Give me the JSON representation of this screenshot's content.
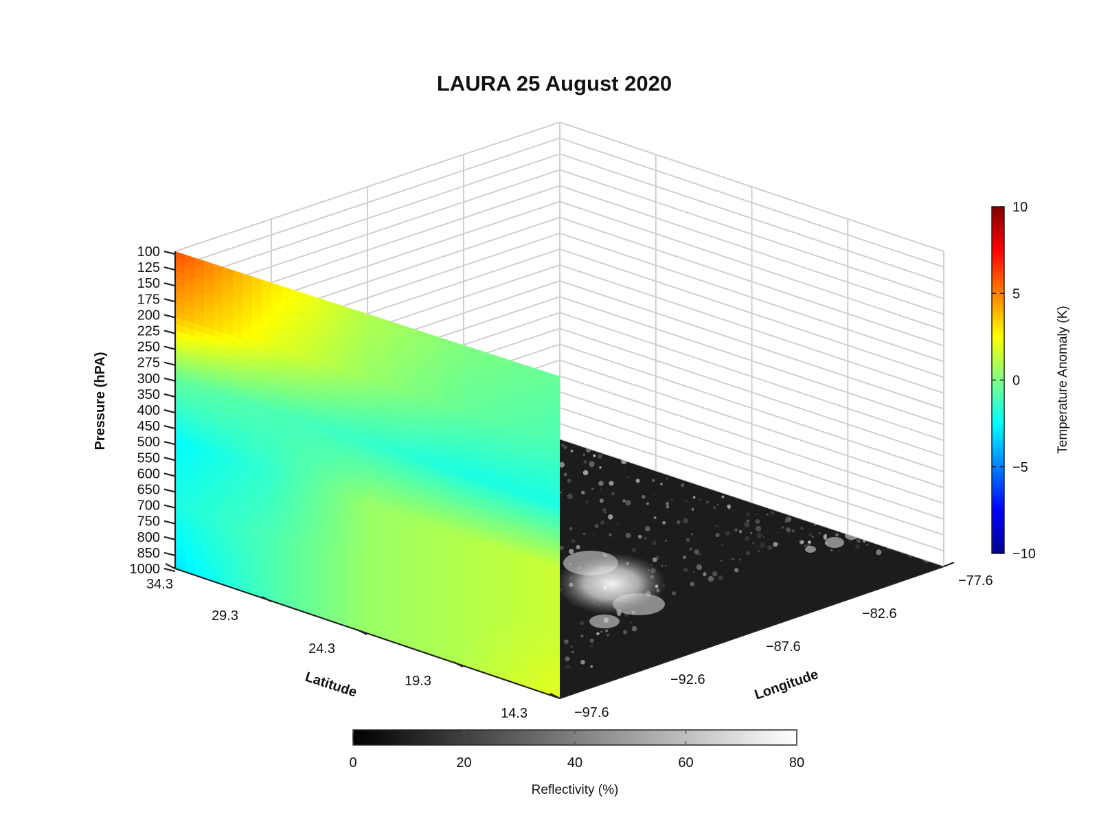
{
  "chart_data": {
    "type": "heatmap",
    "title": "LAURA 25 August 2020",
    "pressure_axis": {
      "label": "Pressure (hPA)",
      "ticks": [
        "100",
        "125",
        "150",
        "175",
        "200",
        "225",
        "250",
        "275",
        "300",
        "350",
        "400",
        "450",
        "500",
        "550",
        "600",
        "650",
        "700",
        "750",
        "800",
        "850",
        "1000"
      ]
    },
    "latitude_axis": {
      "label": "Latitude",
      "ticks": [
        "34.3",
        "29.3",
        "24.3",
        "19.3",
        "14.3"
      ],
      "range": [
        14.3,
        34.3
      ]
    },
    "longitude_axis": {
      "label": "Longitude",
      "ticks": [
        "-97.6",
        "-92.6",
        "-87.6",
        "-82.6",
        "-77.6"
      ],
      "range": [
        -97.6,
        -77.6
      ]
    },
    "temperature_colorbar": {
      "label": "Temperature Anomaly (K)",
      "ticks": [
        "10",
        "5",
        "0",
        "−5",
        "−10"
      ],
      "range": [
        -10,
        10
      ],
      "colormap": "jet"
    },
    "reflectivity_colorbar": {
      "label": "Reflectivity (%)",
      "ticks": [
        "0",
        "20",
        "40",
        "60",
        "80"
      ],
      "range": [
        0,
        80
      ],
      "colormap": "gray"
    },
    "cross_section": {
      "description_units": "Temperature anomaly (K) vs latitude and pressure",
      "latitudes": [
        34.3,
        29.3,
        24.3,
        19.3,
        14.3
      ],
      "pressure_levels": [
        100,
        200,
        300,
        500,
        700,
        1000
      ],
      "values": [
        [
          6.0,
          3.0,
          1.0,
          0.0,
          -0.5
        ],
        [
          4.0,
          2.0,
          0.5,
          -0.5,
          -1.0
        ],
        [
          -0.5,
          -1.0,
          -1.5,
          -2.0,
          -2.0
        ],
        [
          -2.5,
          -1.5,
          0.5,
          1.0,
          1.5
        ],
        [
          -2.0,
          -1.0,
          0.5,
          1.0,
          1.5
        ],
        [
          -3.0,
          -1.0,
          0.5,
          1.0,
          2.0
        ]
      ]
    }
  }
}
